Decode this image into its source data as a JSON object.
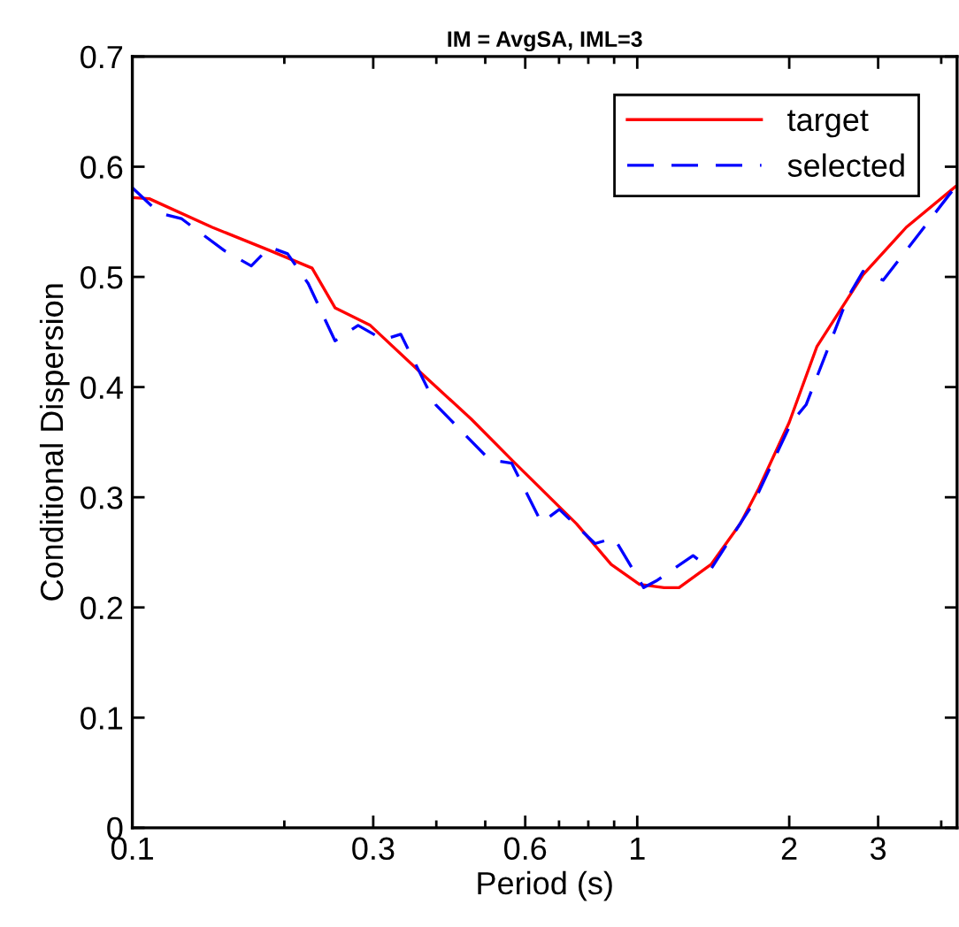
{
  "chart_data": {
    "type": "line",
    "title": "IM = AvgSA, IML=3",
    "xlabel": "Period (s)",
    "ylabel": "Conditional Dispersion",
    "log": "x",
    "xlim": [
      0.1,
      4.3
    ],
    "ylim": [
      0,
      0.7
    ],
    "xticks": [
      0.1,
      {
        "value": 0.2,
        "label": null
      },
      0.3,
      {
        "value": 0.4,
        "label": null
      },
      {
        "value": 0.5,
        "label": null
      },
      0.6,
      {
        "value": 0.7,
        "label": null
      },
      {
        "value": 0.8,
        "label": null
      },
      {
        "value": 0.9,
        "label": null
      },
      1,
      2,
      3,
      {
        "value": 4,
        "label": null
      }
    ],
    "yticks": [
      0,
      0.1,
      0.2,
      0.3,
      0.4,
      0.5,
      0.6,
      0.7
    ],
    "grid": false,
    "legend": "top right",
    "series": [
      {
        "name": "target",
        "color": "#ff0000",
        "line_style": "solid",
        "x": [
          0.1,
          0.108,
          0.144,
          0.187,
          0.227,
          0.252,
          0.296,
          0.377,
          0.469,
          0.564,
          0.758,
          0.888,
          1.01,
          1.13,
          1.21,
          1.4,
          1.6,
          1.74,
          2.0,
          2.27,
          2.8,
          3.41,
          4.27
        ],
        "values": [
          0.572,
          0.571,
          0.545,
          0.524,
          0.508,
          0.472,
          0.456,
          0.411,
          0.371,
          0.334,
          0.276,
          0.239,
          0.221,
          0.218,
          0.218,
          0.239,
          0.276,
          0.308,
          0.368,
          0.437,
          0.502,
          0.545,
          0.582
        ]
      },
      {
        "name": "selected",
        "color": "#0000ff",
        "line_style": "dashed",
        "x": [
          0.1,
          0.113,
          0.125,
          0.152,
          0.172,
          0.187,
          0.203,
          0.223,
          0.252,
          0.28,
          0.314,
          0.34,
          0.399,
          0.51,
          0.564,
          0.646,
          0.701,
          0.825,
          0.9,
          1.03,
          1.09,
          1.29,
          1.4,
          1.7,
          2.02,
          2.16,
          2.61,
          2.8,
          3.07,
          4.27
        ],
        "values": [
          0.581,
          0.558,
          0.553,
          0.524,
          0.51,
          0.527,
          0.521,
          0.494,
          0.442,
          0.456,
          0.443,
          0.448,
          0.384,
          0.334,
          0.331,
          0.277,
          0.289,
          0.258,
          0.263,
          0.218,
          0.224,
          0.247,
          0.235,
          0.295,
          0.368,
          0.384,
          0.481,
          0.505,
          0.497,
          0.582
        ]
      }
    ]
  }
}
